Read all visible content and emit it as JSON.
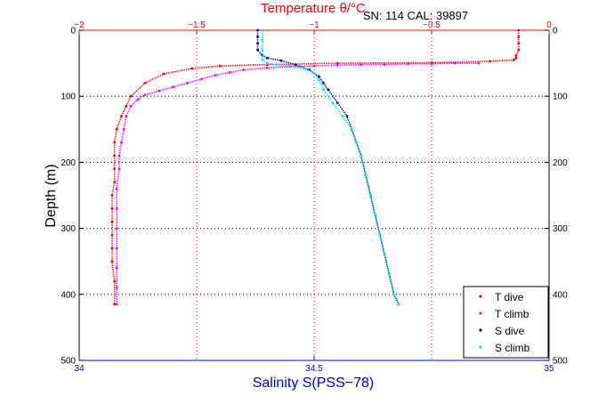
{
  "chart_data": {
    "type": "scatter",
    "title": "Temperature θ/°C",
    "annotation": "SN: 114  CAL: 39897",
    "xlabel_bottom": "Salinity S(PSS−78)",
    "xlabel_top": "Temperature θ/°C",
    "ylabel": "Depth (m)",
    "bottom_axis": {
      "range": [
        34,
        35
      ],
      "ticks": [
        "34",
        "34.5",
        "35"
      ],
      "tick_values": [
        34,
        34.5,
        35
      ]
    },
    "top_axis": {
      "range": [
        -2,
        0
      ],
      "ticks": [
        "−2",
        "−1.5",
        "−1",
        "−0.5",
        "0"
      ],
      "tick_values": [
        -2,
        -1.5,
        -1,
        -0.5,
        0
      ]
    },
    "y_axis": {
      "range": [
        0,
        500
      ],
      "inverted": true,
      "ticks": [
        "0",
        "100",
        "200",
        "300",
        "400",
        "500"
      ],
      "tick_values": [
        0,
        100,
        200,
        300,
        400,
        500
      ]
    },
    "grid": true,
    "legend_position": "bottom-right",
    "colors": {
      "t_dive": "#ff0000",
      "t_climb": "#ff00ff",
      "s_dive": "#0000cc",
      "s_climb": "#00e5ff",
      "bottom_axis": "#0000ff",
      "top_axis": "#ff0000",
      "left_axis": "#000000"
    },
    "series": [
      {
        "name": "T dive",
        "axis": "top",
        "x": [
          -0.13,
          -0.13,
          -0.13,
          -0.13,
          -0.14,
          -0.14,
          -0.15,
          -0.25,
          -0.5,
          -0.9,
          -1.2,
          -1.4,
          -1.52,
          -1.64,
          -1.72,
          -1.78,
          -1.8,
          -1.82,
          -1.84,
          -1.85,
          -1.85,
          -1.85,
          -1.85,
          -1.86,
          -1.86,
          -1.86,
          -1.86,
          -1.86,
          -1.86,
          -1.85,
          -1.85
        ],
        "y": [
          0,
          10,
          20,
          30,
          38,
          42,
          45,
          47,
          49,
          50,
          52,
          54,
          58,
          66,
          80,
          100,
          115,
          130,
          150,
          170,
          190,
          210,
          230,
          250,
          270,
          290,
          310,
          330,
          350,
          380,
          415
        ]
      },
      {
        "name": "T climb",
        "axis": "top",
        "x": [
          -1.84,
          -1.84,
          -1.84,
          -1.84,
          -1.84,
          -1.84,
          -1.84,
          -1.83,
          -1.83,
          -1.82,
          -1.81,
          -1.8,
          -1.78,
          -1.75,
          -1.72,
          -1.66,
          -1.6,
          -1.54,
          -1.48,
          -1.42,
          -1.36,
          -1.3,
          -1.2,
          -1.1,
          -1.0,
          -0.9,
          -0.8,
          -0.7,
          -0.6,
          -0.5,
          -0.4,
          -0.3
        ],
        "y": [
          415,
          390,
          360,
          330,
          300,
          270,
          240,
          210,
          190,
          170,
          150,
          130,
          115,
          105,
          98,
          92,
          86,
          80,
          74,
          68,
          64,
          60,
          57,
          55,
          54,
          53,
          52,
          52,
          51,
          51,
          50,
          50
        ]
      },
      {
        "name": "S dive",
        "axis": "bottom",
        "x": [
          34.38,
          34.38,
          34.38,
          34.38,
          34.39,
          34.4,
          34.43,
          34.46,
          34.49,
          34.51,
          34.52,
          34.53,
          34.55,
          34.57,
          34.58,
          34.59,
          34.6,
          34.61,
          34.62,
          34.63,
          34.64,
          34.65,
          34.66,
          34.67,
          34.68
        ],
        "y": [
          0,
          10,
          20,
          30,
          38,
          42,
          46,
          52,
          60,
          70,
          80,
          90,
          110,
          130,
          150,
          170,
          190,
          220,
          250,
          280,
          310,
          340,
          370,
          400,
          415
        ]
      },
      {
        "name": "S climb",
        "axis": "bottom",
        "x": [
          34.68,
          34.67,
          34.66,
          34.65,
          34.64,
          34.63,
          34.62,
          34.61,
          34.6,
          34.59,
          34.58,
          34.56,
          34.54,
          34.52,
          34.51,
          34.5,
          34.48,
          34.45,
          34.42,
          34.4,
          34.39,
          34.39,
          34.39,
          34.39
        ],
        "y": [
          415,
          400,
          370,
          340,
          310,
          280,
          250,
          220,
          190,
          170,
          150,
          130,
          110,
          90,
          75,
          65,
          58,
          54,
          52,
          50,
          45,
          30,
          15,
          0
        ]
      }
    ]
  }
}
